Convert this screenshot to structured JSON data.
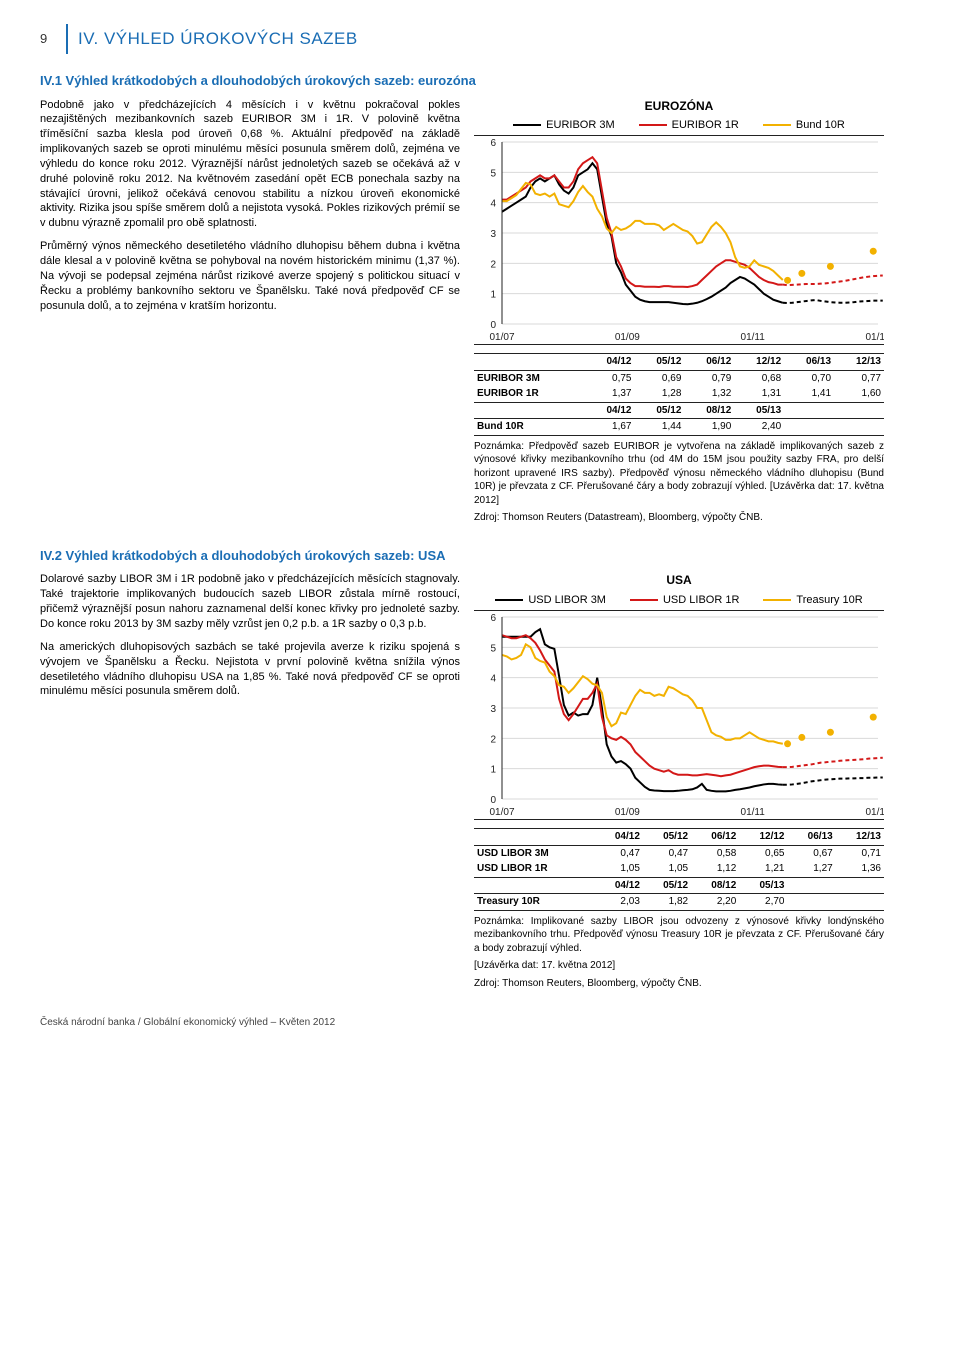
{
  "header": {
    "page_number": "9",
    "title": "IV. VÝHLED ÚROKOVÝCH SAZEB"
  },
  "section1": {
    "heading": "IV.1 Výhled krátkodobých a dlouhodobých úrokových sazeb: eurozóna",
    "p1": "Podobně jako v předcházejících 4 měsících i v květnu pokračoval pokles nezajištěných mezibankovních sazeb EURIBOR 3M i 1R. V polovině května tříměsíční sazba klesla pod úroveň 0,68 %. Aktuální předpověď na základě implikovaných sazeb se oproti minulému měsíci posunula směrem dolů, zejména ve výhledu do konce roku 2012. Výraznější nárůst jednoletých sazeb se očekává až v druhé polovině roku 2012. Na květnovém zasedání opět ECB ponechala sazby na stávající úrovni, jelikož očekává cenovou stabilitu a nízkou úroveň ekonomické aktivity. Rizika jsou spíše směrem dolů a nejistota vysoká. Pokles rizikových prémií se v dubnu výrazně zpomalil pro obě splatnosti.",
    "p2": "Průměrný výnos německého desetiletého vládního dluhopisu během dubna i května dále klesal a v polovině května se pohyboval na novém historickém minimu (1,37 %). Na vývoji se podepsal zejména nárůst rizikové averze spojený s politickou situací v Řecku a problémy bankovního sektoru ve Španělsku. Také nová předpověď CF se posunula dolů, a to zejména v kratším horizontu."
  },
  "chart1": {
    "title": "EUROZÓNA",
    "series": [
      {
        "label": "EURIBOR 3M",
        "color": "#000000"
      },
      {
        "label": "EURIBOR 1R",
        "color": "#d31818"
      },
      {
        "label": "Bund 10R",
        "color": "#f2b100"
      }
    ],
    "ylim": [
      0,
      6
    ],
    "ytick_step": 1,
    "xticks": [
      "01/07",
      "01/09",
      "01/11",
      "01/13"
    ],
    "grid_color": "#d9d9d9",
    "background": "#ffffff",
    "data": {
      "x_start": 0,
      "x_end": 80,
      "euribor3m": [
        3.7,
        3.8,
        3.9,
        4.0,
        4.1,
        4.2,
        4.5,
        4.7,
        4.8,
        4.7,
        4.8,
        4.9,
        4.6,
        4.4,
        4.3,
        4.5,
        4.9,
        5.0,
        5.1,
        5.3,
        5.1,
        4.2,
        3.3,
        2.9,
        2.0,
        1.7,
        1.3,
        1.1,
        0.9,
        0.8,
        0.75,
        0.72,
        0.72,
        0.72,
        0.72,
        0.72,
        0.7,
        0.68,
        0.66,
        0.65,
        0.67,
        0.7,
        0.75,
        0.82,
        0.9,
        1.0,
        1.1,
        1.2,
        1.35,
        1.45,
        1.55,
        1.5,
        1.4,
        1.3,
        1.15,
        1.0,
        0.9,
        0.8,
        0.75,
        0.7
      ],
      "euribor1r": [
        4.1,
        4.1,
        4.2,
        4.3,
        4.4,
        4.5,
        4.7,
        4.8,
        4.9,
        4.8,
        4.8,
        4.9,
        4.7,
        4.5,
        4.5,
        4.7,
        5.1,
        5.3,
        5.4,
        5.5,
        5.3,
        4.4,
        3.5,
        3.0,
        2.2,
        1.9,
        1.5,
        1.35,
        1.25,
        1.25,
        1.23,
        1.23,
        1.23,
        1.22,
        1.25,
        1.25,
        1.23,
        1.23,
        1.23,
        1.22,
        1.25,
        1.3,
        1.45,
        1.6,
        1.75,
        1.9,
        2.0,
        2.1,
        2.1,
        2.05,
        2.0,
        1.95,
        1.85,
        1.7,
        1.55,
        1.45,
        1.38,
        1.35,
        1.3,
        1.3
      ],
      "bund10r": [
        4.05,
        4.05,
        4.15,
        4.25,
        4.45,
        4.65,
        4.6,
        4.3,
        4.25,
        4.3,
        4.2,
        4.3,
        3.95,
        3.9,
        3.85,
        4.05,
        4.35,
        4.55,
        4.35,
        4.2,
        3.8,
        3.55,
        3.15,
        3.0,
        3.2,
        3.1,
        3.15,
        3.25,
        3.4,
        3.4,
        3.3,
        3.3,
        3.3,
        3.25,
        3.1,
        3.2,
        3.3,
        3.2,
        3.1,
        3.05,
        2.9,
        2.65,
        2.7,
        2.95,
        3.2,
        3.35,
        3.2,
        3.0,
        2.7,
        2.2,
        1.9,
        1.85,
        1.9,
        2.1,
        1.95,
        1.9,
        1.85,
        1.75,
        1.6,
        1.45
      ],
      "forecast_start_index": 59,
      "euribor3m_fc": [
        0.69,
        0.7,
        0.72,
        0.74,
        0.76,
        0.78,
        0.79,
        0.76,
        0.74,
        0.72,
        0.71,
        0.7,
        0.7,
        0.71,
        0.72,
        0.74,
        0.75,
        0.76,
        0.77,
        0.77,
        0.77
      ],
      "euribor1r_fc": [
        1.28,
        1.29,
        1.3,
        1.31,
        1.32,
        1.32,
        1.32,
        1.33,
        1.34,
        1.36,
        1.38,
        1.4,
        1.42,
        1.45,
        1.48,
        1.51,
        1.54,
        1.56,
        1.58,
        1.59,
        1.6
      ],
      "bund10r_fc": [
        1.44,
        1.67,
        1.9,
        2.4
      ]
    },
    "table": {
      "cols": [
        "04/12",
        "05/12",
        "06/12",
        "12/12",
        "06/13",
        "12/13"
      ],
      "rows": [
        [
          "EURIBOR 3M",
          "0,75",
          "0,69",
          "0,79",
          "0,68",
          "0,70",
          "0,77"
        ],
        [
          "EURIBOR 1R",
          "1,37",
          "1,28",
          "1,32",
          "1,31",
          "1,41",
          "1,60"
        ]
      ],
      "cols2": [
        "04/12",
        "05/12",
        "08/12",
        "05/13"
      ],
      "rows2": [
        [
          "Bund 10R",
          "1,67",
          "1,44",
          "1,90",
          "2,40"
        ]
      ]
    },
    "note": "Poznámka: Předpověď sazeb EURIBOR je vytvořena na základě implikovaných sazeb z výnosové křivky mezibankovního trhu (od 4M do 15M jsou použity sazby FRA, pro delší horizont upravené IRS sazby). Předpověď výnosu německého vládního dluhopisu (Bund 10R) je převzata z CF. Přerušované čáry a body zobrazují výhled. [Uzávěrka dat: 17. května 2012]",
    "source": "Zdroj: Thomson Reuters (Datastream), Bloomberg, výpočty ČNB."
  },
  "section2": {
    "heading": "IV.2 Výhled krátkodobých a dlouhodobých úrokových sazeb: USA",
    "p1": "Dolarové sazby LIBOR 3M i 1R podobně jako v předcházejících měsících stagnovaly. Také trajektorie implikovaných budoucích sazeb LIBOR zůstala mírně rostoucí, přičemž výraznější posun nahoru zaznamenal delší konec křivky pro jednoleté sazby. Do konce roku 2013 by 3M sazby měly vzrůst jen 0,2 p.b. a 1R sazby o 0,3 p.b.",
    "p2": "Na amerických dluhopisových sazbách se také projevila averze k riziku spojená s vývojem ve Španělsku a Řecku. Nejistota v první polovině května snížila výnos desetiletého vládního dluhopisu USA na 1,85 %. Také nová předpověď CF se oproti minulému měsíci posunula směrem dolů."
  },
  "chart2": {
    "title": "USA",
    "series": [
      {
        "label": "USD LIBOR 3M",
        "color": "#000000"
      },
      {
        "label": "USD LIBOR 1R",
        "color": "#d31818"
      },
      {
        "label": "Treasury 10R",
        "color": "#f2b100"
      }
    ],
    "ylim": [
      0,
      6
    ],
    "ytick_step": 1,
    "xticks": [
      "01/07",
      "01/09",
      "01/11",
      "01/13"
    ],
    "grid_color": "#d9d9d9",
    "background": "#ffffff",
    "data": {
      "libor3m": [
        5.35,
        5.35,
        5.35,
        5.35,
        5.35,
        5.35,
        5.35,
        5.5,
        5.6,
        5.1,
        5.0,
        4.95,
        4.05,
        3.1,
        2.75,
        2.85,
        2.75,
        2.8,
        2.8,
        3.1,
        4.0,
        3.0,
        1.8,
        1.4,
        1.2,
        1.25,
        1.15,
        1.0,
        0.7,
        0.55,
        0.4,
        0.3,
        0.28,
        0.27,
        0.26,
        0.26,
        0.26,
        0.27,
        0.29,
        0.3,
        0.32,
        0.38,
        0.5,
        0.3,
        0.27,
        0.25,
        0.25,
        0.25,
        0.27,
        0.3,
        0.32,
        0.35,
        0.38,
        0.42,
        0.45,
        0.48,
        0.5,
        0.5,
        0.48,
        0.47
      ],
      "libor1r": [
        5.4,
        5.35,
        5.3,
        5.3,
        5.35,
        5.4,
        5.3,
        5.15,
        4.9,
        4.6,
        4.4,
        4.2,
        3.3,
        2.8,
        2.6,
        2.8,
        3.05,
        3.3,
        3.3,
        3.5,
        3.8,
        2.7,
        2.1,
        2.0,
        1.95,
        2.05,
        1.95,
        1.8,
        1.55,
        1.4,
        1.25,
        1.1,
        1.0,
        0.95,
        0.9,
        0.95,
        0.85,
        0.8,
        0.8,
        0.8,
        0.78,
        0.78,
        0.8,
        0.82,
        0.8,
        0.78,
        0.75,
        0.78,
        0.8,
        0.85,
        0.9,
        0.95,
        1.0,
        1.05,
        1.08,
        1.1,
        1.1,
        1.08,
        1.06,
        1.05
      ],
      "treasury10r": [
        4.75,
        4.7,
        4.6,
        4.65,
        4.75,
        5.1,
        5.0,
        4.65,
        4.55,
        4.5,
        4.2,
        4.05,
        3.75,
        3.7,
        3.5,
        3.65,
        3.85,
        4.05,
        3.95,
        3.8,
        3.75,
        3.5,
        2.7,
        2.4,
        2.5,
        2.85,
        2.8,
        3.1,
        3.4,
        3.6,
        3.5,
        3.5,
        3.4,
        3.45,
        3.4,
        3.7,
        3.65,
        3.55,
        3.45,
        3.4,
        3.25,
        3.0,
        3.0,
        2.6,
        2.2,
        2.1,
        2.05,
        1.95,
        1.95,
        2.0,
        2.0,
        2.1,
        2.2,
        2.1,
        2.0,
        1.95,
        1.9,
        1.9,
        1.85,
        1.82
      ],
      "forecast_start_index": 59,
      "libor3m_fc": [
        0.47,
        0.48,
        0.5,
        0.52,
        0.55,
        0.58,
        0.6,
        0.62,
        0.64,
        0.65,
        0.66,
        0.67,
        0.67,
        0.68,
        0.68,
        0.69,
        0.69,
        0.7,
        0.7,
        0.71,
        0.71
      ],
      "libor1r_fc": [
        1.05,
        1.06,
        1.08,
        1.1,
        1.12,
        1.14,
        1.17,
        1.2,
        1.21,
        1.23,
        1.24,
        1.26,
        1.27,
        1.28,
        1.29,
        1.3,
        1.31,
        1.33,
        1.34,
        1.35,
        1.36
      ],
      "treasury10r_fc": [
        1.82,
        2.03,
        2.2,
        2.7
      ]
    },
    "table": {
      "cols": [
        "04/12",
        "05/12",
        "06/12",
        "12/12",
        "06/13",
        "12/13"
      ],
      "rows": [
        [
          "USD LIBOR 3M",
          "0,47",
          "0,47",
          "0,58",
          "0,65",
          "0,67",
          "0,71"
        ],
        [
          "USD LIBOR 1R",
          "1,05",
          "1,05",
          "1,12",
          "1,21",
          "1,27",
          "1,36"
        ]
      ],
      "cols2": [
        "04/12",
        "05/12",
        "08/12",
        "05/13"
      ],
      "rows2": [
        [
          "Treasury 10R",
          "2,03",
          "1,82",
          "2,20",
          "2,70"
        ]
      ]
    },
    "note": "Poznámka: Implikované sazby LIBOR jsou odvozeny z výnosové křivky londýnského mezibankovního trhu. Předpověď výnosu Treasury 10R je převzata z CF. Přerušované čáry a body zobrazují výhled.",
    "note2": "[Uzávěrka dat: 17. května 2012]",
    "source": "Zdroj: Thomson Reuters, Bloomberg, výpočty ČNB."
  },
  "footer": "Česká národní banka / Globální ekonomický výhled – Květen 2012"
}
